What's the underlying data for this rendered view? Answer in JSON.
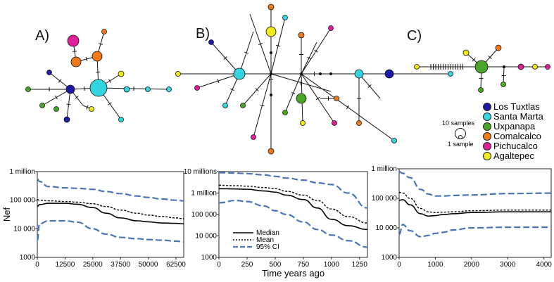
{
  "panels": {
    "a": "A)",
    "b": "B)",
    "c": "C)"
  },
  "legend": {
    "items": [
      {
        "label": "Los Tuxtlas",
        "color": "#1a1aa6"
      },
      {
        "label": "Santa Marta",
        "color": "#33d6e0"
      },
      {
        "label": "Uxpanapa",
        "color": "#4aa62a"
      },
      {
        "label": "Comalcalco",
        "color": "#f07a1a"
      },
      {
        "label": "Pichucalco",
        "color": "#e0209a"
      },
      {
        "label": "Agaltepec",
        "color": "#f2ea1a"
      }
    ],
    "size_large": "10 samples",
    "size_small": "1 sample"
  },
  "colors": {
    "median": "#000000",
    "mean": "#000000",
    "ci": "#4a76b8"
  },
  "chart_data": [
    {
      "type": "line",
      "id": "A",
      "ylabel": "Nef",
      "xlabel": "",
      "yscale": "log",
      "ylim": [
        1000,
        1000000
      ],
      "yticks": [
        {
          "v": 1000,
          "l": "1000"
        },
        {
          "v": 10000,
          "l": "10 000"
        },
        {
          "v": 100000,
          "l": "100 000"
        },
        {
          "v": 1000000,
          "l": "1 million"
        }
      ],
      "xlim": [
        0,
        66000
      ],
      "xticks": [
        0,
        12500,
        25000,
        37500,
        50000,
        62500
      ],
      "x": [
        0,
        1000,
        5000,
        12500,
        18000,
        25000,
        31000,
        37500,
        45000,
        50000,
        56000,
        62500,
        66000
      ],
      "series": [
        {
          "name": "Median",
          "style": "solid",
          "values": [
            60000,
            70000,
            78000,
            78000,
            72000,
            55000,
            35000,
            24000,
            19000,
            17500,
            16000,
            15500,
            15000
          ]
        },
        {
          "name": "Mean",
          "style": "dotted",
          "values": [
            105000,
            100000,
            95000,
            90000,
            85000,
            75000,
            60000,
            45000,
            35000,
            30000,
            27000,
            24000,
            22500
          ]
        },
        {
          "name": "95% CI upper",
          "style": "dashed",
          "values": [
            550000,
            450000,
            300000,
            270000,
            260000,
            240000,
            200000,
            170000,
            140000,
            125000,
            110000,
            100000,
            95000
          ]
        },
        {
          "name": "95% CI lower",
          "style": "dashed",
          "values": [
            4000,
            15000,
            19000,
            19000,
            17000,
            10000,
            6500,
            5000,
            4500,
            4200,
            4000,
            3700,
            3500
          ]
        }
      ]
    },
    {
      "type": "line",
      "id": "B",
      "ylabel": "",
      "xlabel": "Time years ago",
      "yscale": "log",
      "ylim": [
        1000,
        10000000
      ],
      "yticks": [
        {
          "v": 1000,
          "l": "1000"
        },
        {
          "v": 10000,
          "l": "10 000"
        },
        {
          "v": 100000,
          "l": "100 000"
        },
        {
          "v": 1000000,
          "l": "1 million"
        },
        {
          "v": 10000000,
          "l": "10 millions"
        }
      ],
      "xlim": [
        0,
        1320
      ],
      "xticks": [
        0,
        250,
        500,
        750,
        1000,
        1250
      ],
      "legend": [
        {
          "label": "Median",
          "style": "solid"
        },
        {
          "label": "Mean",
          "style": "dotted"
        },
        {
          "label": "95% CI",
          "style": "dashed"
        }
      ],
      "x": [
        0,
        150,
        250,
        400,
        500,
        600,
        750,
        875,
        1000,
        1150,
        1320
      ],
      "series": [
        {
          "name": "Median",
          "style": "solid",
          "values": [
            1600000,
            1550000,
            1500000,
            1250000,
            1100000,
            800000,
            500000,
            200000,
            60000,
            30000,
            20000
          ]
        },
        {
          "name": "Mean",
          "style": "dotted",
          "values": [
            2300000,
            2200000,
            2100000,
            1800000,
            1600000,
            1200000,
            800000,
            450000,
            180000,
            80000,
            40000
          ]
        },
        {
          "name": "95% CI upper",
          "style": "dashed",
          "values": [
            9000000,
            8500000,
            8000000,
            7000000,
            6000000,
            5000000,
            4000000,
            3000000,
            2500000,
            1000000,
            200000
          ]
        },
        {
          "name": "95% CI lower",
          "style": "dashed",
          "values": [
            350000,
            450000,
            400000,
            250000,
            150000,
            100000,
            45000,
            20000,
            11000,
            6000,
            3000
          ]
        }
      ]
    },
    {
      "type": "line",
      "id": "C",
      "ylabel": "",
      "xlabel": "",
      "yscale": "log",
      "ylim": [
        1000,
        1000000
      ],
      "yticks": [
        {
          "v": 1000,
          "l": "1000"
        },
        {
          "v": 10000,
          "l": "10 000"
        },
        {
          "v": 100000,
          "l": "100 000"
        },
        {
          "v": 1000000,
          "l": "1 million"
        }
      ],
      "xlim": [
        0,
        4200
      ],
      "xticks": [
        0,
        1000,
        2000,
        3000,
        4000
      ],
      "x": [
        0,
        100,
        300,
        600,
        800,
        1000,
        1200,
        1500,
        2000,
        3000,
        4200
      ],
      "series": [
        {
          "name": "Median",
          "style": "solid",
          "values": [
            85000,
            90000,
            60000,
            30000,
            25000,
            26000,
            28000,
            30000,
            33000,
            35000,
            35000
          ]
        },
        {
          "name": "Mean",
          "style": "dotted",
          "values": [
            160000,
            150000,
            100000,
            45000,
            35000,
            33000,
            34000,
            35000,
            38000,
            40000,
            40000
          ]
        },
        {
          "name": "95% CI upper",
          "style": "dashed",
          "values": [
            800000,
            700000,
            500000,
            200000,
            140000,
            120000,
            120000,
            125000,
            130000,
            145000,
            150000
          ]
        },
        {
          "name": "95% CI lower",
          "style": "dashed",
          "values": [
            6000,
            13000,
            8000,
            5000,
            5500,
            6500,
            7000,
            8500,
            10000,
            10500,
            10500
          ]
        }
      ]
    }
  ]
}
